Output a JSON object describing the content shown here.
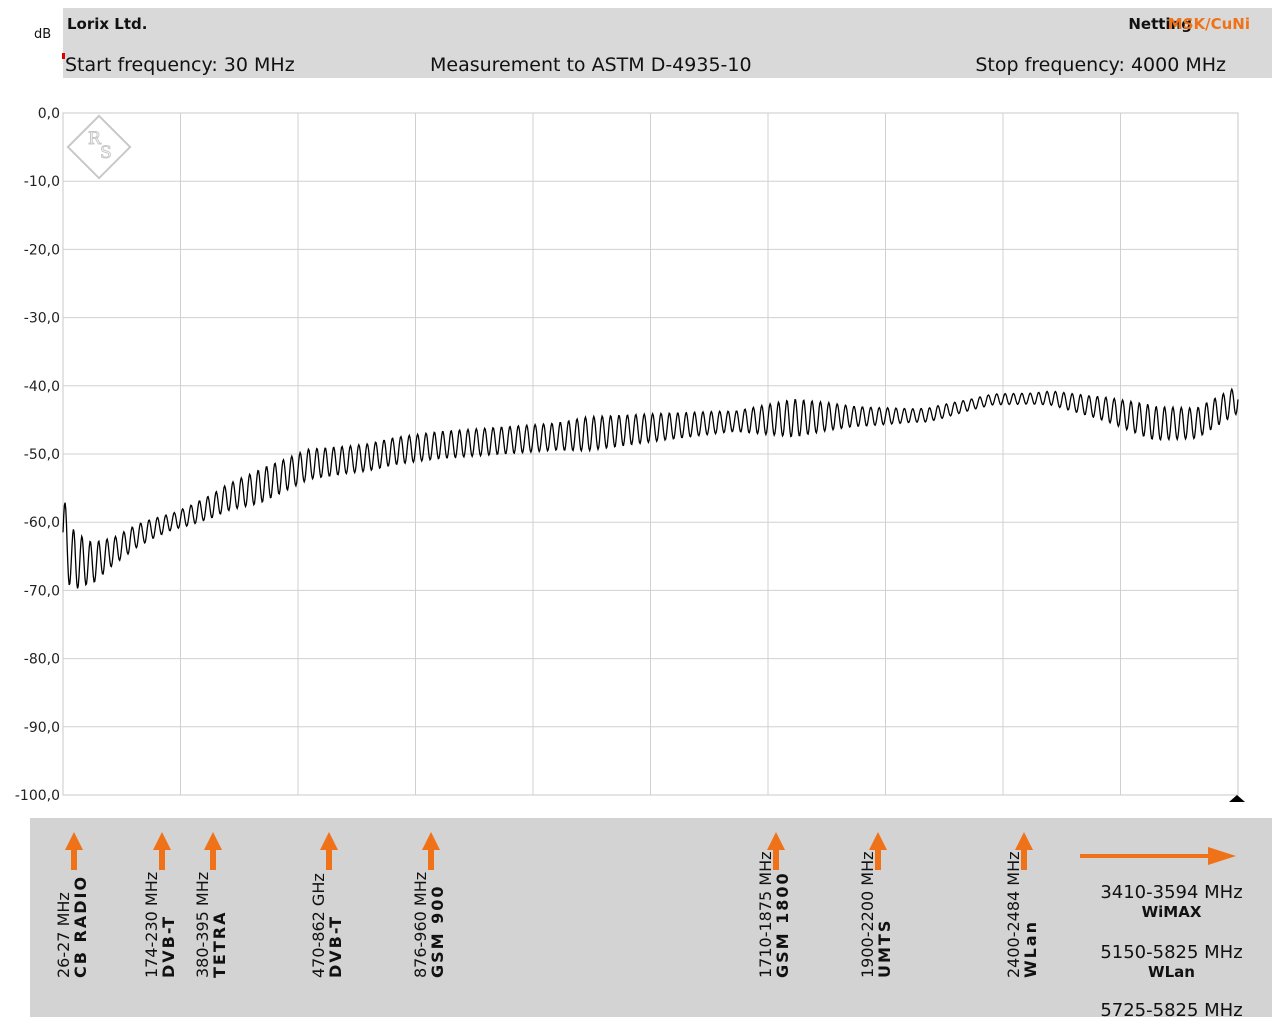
{
  "header": {
    "company": "Lorix Ltd.",
    "netting_label": "Netting",
    "netting_value": "MSK/CuNi",
    "start_frequency": "Start frequency: 30 MHz",
    "method": "Measurement to ASTM D-4935-10",
    "stop_frequency": "Stop frequency: 4000 MHz",
    "accent_color": "#f07218",
    "header_bg": "#d9d9d9"
  },
  "chart_data": {
    "type": "line",
    "ylabel": "dB",
    "xlim": [
      30,
      4000
    ],
    "ylim": [
      -100,
      0
    ],
    "y_ticks": [
      "0,0",
      "-10,0",
      "-20,0",
      "-30,0",
      "-40,0",
      "-50,0",
      "-60,0",
      "-70,0",
      "-80,0",
      "-90,0",
      "-100,0"
    ],
    "x_gridlines": 10,
    "grid": true,
    "line_color": "#000000",
    "trend": {
      "x": [
        30,
        60,
        130,
        210,
        280,
        330,
        380,
        460,
        540,
        580,
        630,
        680,
        760,
        860,
        960,
        1060,
        1160,
        1300,
        1460,
        1620,
        1740,
        1860,
        2060,
        2260,
        2470,
        2620,
        2760,
        2950,
        3170,
        3370,
        3560,
        3720,
        3860,
        4000
      ],
      "y": [
        -61.5,
        -65.5,
        -66,
        -64,
        -62,
        -61,
        -60.2,
        -59,
        -57.5,
        -56.5,
        -55.7,
        -55,
        -53.5,
        -51.5,
        -51,
        -50.5,
        -49.5,
        -48.7,
        -48.2,
        -47.7,
        -47.3,
        -46.8,
        -46,
        -45.3,
        -44.8,
        -44.5,
        -44.5,
        -44.3,
        -42,
        -41.8,
        -43.5,
        -45.5,
        -45.5,
        -42
      ]
    },
    "amp": {
      "x": [
        30,
        100,
        200,
        400,
        600,
        700,
        1000,
        1700,
        1800,
        2300,
        2500,
        2700,
        2900,
        3000,
        3100,
        3300,
        3500,
        3700,
        4000
      ],
      "y": [
        5.5,
        3.5,
        2.0,
        1.2,
        2.0,
        2.5,
        2.0,
        2.0,
        2.5,
        1.5,
        2.8,
        1.5,
        1.0,
        1.0,
        0.8,
        0.8,
        1.5,
        2.5,
        2.0
      ]
    },
    "cycles": 140
  },
  "footer": {
    "bg": "#d3d3d3",
    "bands": [
      {
        "freq": "26-27 MHz",
        "name": "CB RADIO"
      },
      {
        "freq": "174-230 MHz",
        "name": "DVB-T"
      },
      {
        "freq": "380-395 MHz",
        "name": "TETRA"
      },
      {
        "freq": "470-862 GHz",
        "name": "DVB-T"
      },
      {
        "freq": "876-960 MHz",
        "name": "GSM 900"
      },
      {
        "freq": "1710-1875 MHz",
        "name": "GSM 1800"
      },
      {
        "freq": "1900-2200 MHz",
        "name": "UMTS"
      },
      {
        "freq": "2400-2484 MHz",
        "name": "WLan"
      }
    ],
    "beyond": [
      {
        "freq": "3410-3594 MHz",
        "name": "WiMAX"
      },
      {
        "freq": "5150-5825 MHz",
        "name": "WLan"
      },
      {
        "freq": "5725-5825 MHz",
        "name": ""
      }
    ]
  }
}
